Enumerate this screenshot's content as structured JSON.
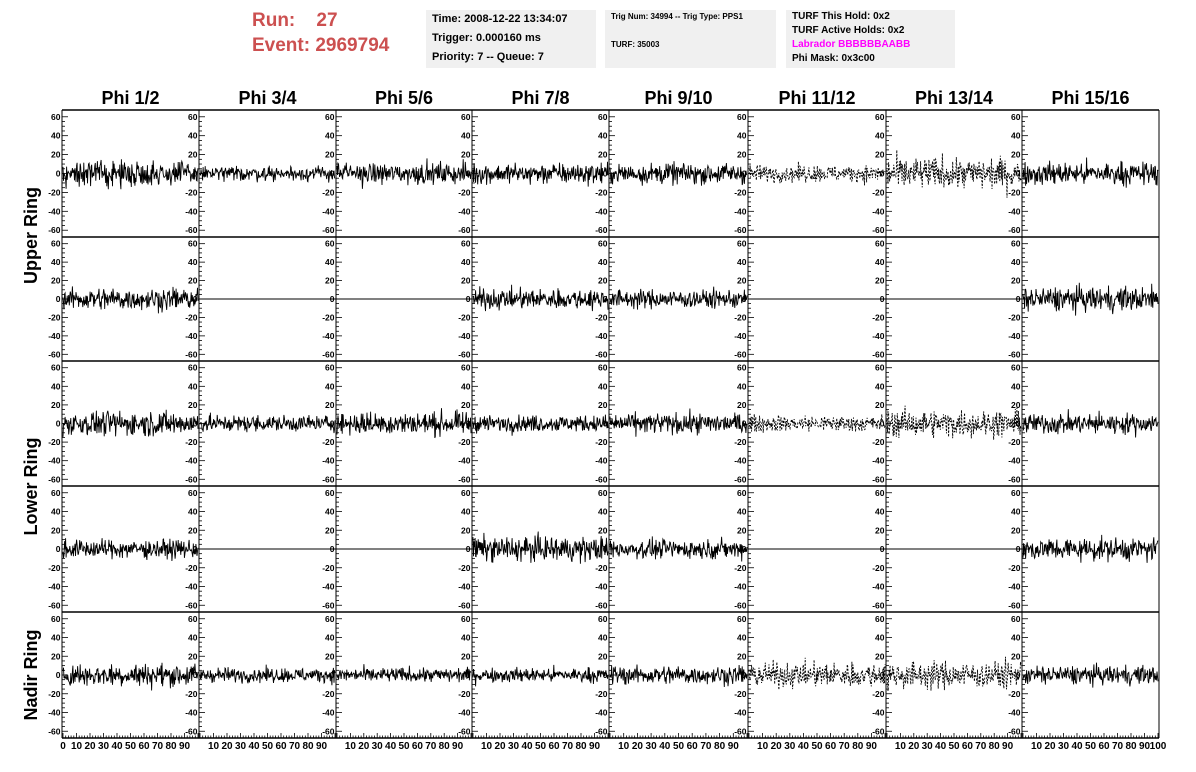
{
  "header": {
    "run_label": "Run:",
    "run_value": "27",
    "event_label": "Event:",
    "event_value": "2969794"
  },
  "info_box_1": {
    "time": "Time: 2008-12-22 13:34:07",
    "trigger": "Trigger: 0.000160 ms",
    "priority": "Priority: 7 -- Queue: 7"
  },
  "info_box_2": {
    "trig": "Trig Num: 34994 -- Trig Type: PPS1",
    "turf": "TURF: 35003"
  },
  "info_box_3": {
    "this_hold": "TURF This Hold: 0x2",
    "active_holds": "TURF Active Holds: 0x2",
    "labrador": "Labrador BBBBBBAABB",
    "phi_mask": "Phi Mask: 0x3c00",
    "labrador_color": "#ff00ff"
  },
  "chart_data": {
    "type": "line",
    "columns": [
      "Phi 1/2",
      "Phi 3/4",
      "Phi 5/6",
      "Phi 7/8",
      "Phi 9/10",
      "Phi 11/12",
      "Phi 13/14",
      "Phi 15/16"
    ],
    "ring_labels": [
      "Upper Ring",
      "Lower Ring",
      "Nadir Ring"
    ],
    "ring_row_spans": [
      [
        0,
        1
      ],
      [
        2,
        3
      ],
      [
        4,
        4
      ]
    ],
    "ylim": [
      -64,
      64
    ],
    "y_ticks": [
      -60,
      -40,
      -20,
      0,
      20,
      40,
      60
    ],
    "xlim": [
      0,
      100
    ],
    "x_ticks": [
      0,
      10,
      20,
      30,
      40,
      50,
      60,
      70,
      80,
      90,
      100
    ],
    "x_tick_labels": [
      "0",
      "10",
      "20",
      "30",
      "40",
      "50",
      "60",
      "70",
      "80",
      "90",
      "100"
    ],
    "grid": false,
    "panels": [
      [
        "noise-std12",
        "noise-std7",
        "noise-std10",
        "noise-std10",
        "noise-std10",
        "dashed-std8",
        "dashed-std15",
        "noise-std11"
      ],
      [
        "noise-std11",
        "flat-zero",
        "flat-zero",
        "noise-std10",
        "noise-std9",
        "flat-zero",
        "flat-zero",
        "noise-std12"
      ],
      [
        "noise-std12",
        "noise-std8",
        "noise-std11",
        "noise-std8",
        "noise-std10",
        "dashed-std8",
        "dashed-std13",
        "noise-std10"
      ],
      [
        "noise-std9",
        "flat-zero",
        "flat-zero",
        "noise-std12",
        "noise-std9",
        "flat-zero",
        "flat-zero",
        "noise-std11"
      ],
      [
        "noise-std11",
        "noise-std7",
        "noise-std7",
        "noise-std7",
        "noise-std9",
        "dashed-std12",
        "dashed-std13",
        "noise-std9"
      ]
    ],
    "line_color": "#000000"
  }
}
